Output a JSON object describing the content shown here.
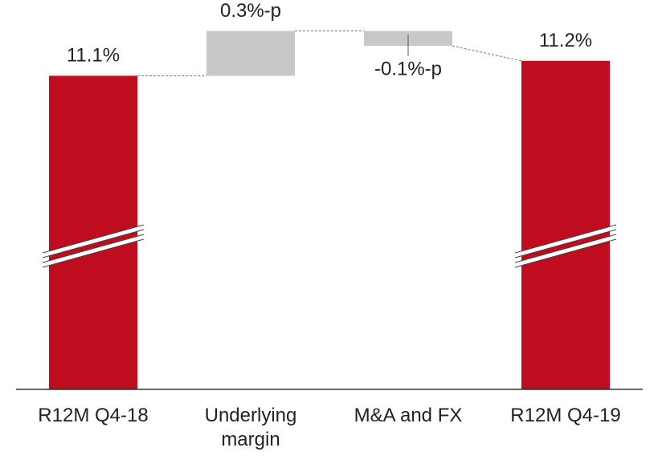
{
  "chart_data": {
    "type": "waterfall",
    "categories": [
      "R12M Q4-18",
      "Underlying margin",
      "M&A and FX",
      "R12M Q4-19"
    ],
    "values": [
      11.1,
      0.3,
      -0.1,
      11.2
    ],
    "value_labels": [
      "11.1%",
      "0.3%-p",
      "-0.1%-p",
      "11.2%"
    ],
    "measures": [
      "total",
      "relative",
      "relative",
      "total"
    ],
    "colors": {
      "total": "#c00c1f",
      "relative": "#c8c8c8"
    },
    "ylim": [
      9,
      11.5
    ],
    "axis_break": true
  }
}
